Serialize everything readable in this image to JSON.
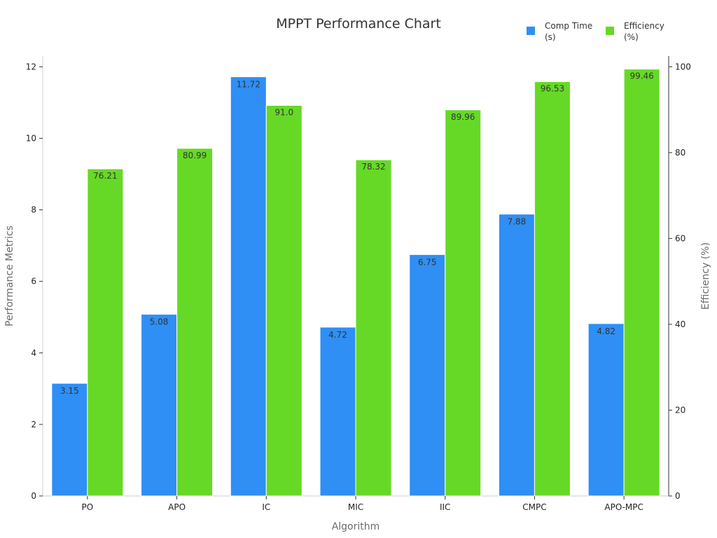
{
  "chart_data": {
    "type": "bar",
    "title": "MPPT Performance Chart",
    "xlabel": "Algorithm",
    "ylabel": "Performance Metrics",
    "y2label": "Efficiency (%)",
    "categories": [
      "PO",
      "APO",
      "IC",
      "MIC",
      "IIC",
      "CMPC",
      "APO-MPC"
    ],
    "ylim": [
      0,
      12.3
    ],
    "y2lim": [
      0,
      102.5
    ],
    "yticks": [
      0,
      2,
      4,
      6,
      8,
      10,
      12
    ],
    "y2ticks": [
      0,
      20,
      40,
      60,
      80,
      100
    ],
    "grid": false,
    "legend_position": "top-right",
    "series": [
      {
        "name": "Comp Time (s)",
        "legend_lines": [
          "Comp Time",
          "(s)"
        ],
        "axis": "left",
        "color": "#2f8ff5",
        "values": [
          3.15,
          5.08,
          11.72,
          4.72,
          6.75,
          7.88,
          4.82
        ],
        "labels": [
          "3.15",
          "5.08",
          "11.72",
          "4.72",
          "6.75",
          "7.88",
          "4.82"
        ]
      },
      {
        "name": "Efficiency (%)",
        "legend_lines": [
          "Efficiency",
          "(%)"
        ],
        "axis": "right",
        "color": "#66d926",
        "values": [
          76.21,
          80.99,
          91.0,
          78.32,
          89.96,
          96.53,
          99.46
        ],
        "labels": [
          "76.21",
          "80.99",
          "91.0",
          "78.32",
          "89.96",
          "96.53",
          "99.46"
        ]
      }
    ]
  }
}
